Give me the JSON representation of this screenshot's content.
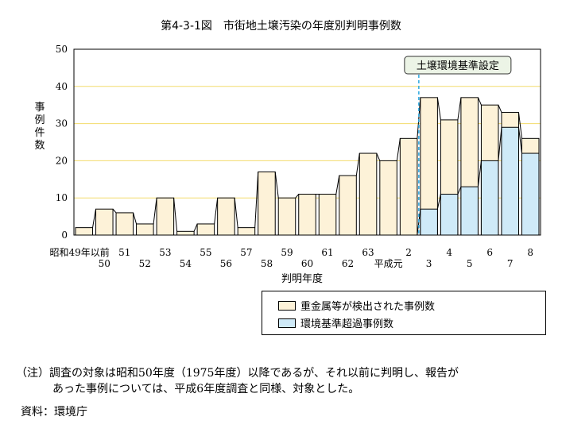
{
  "chart_data": {
    "type": "bar",
    "title": "第4-3-1図　市街地土壌汚染の年度別判明事例数",
    "ylabel": "事例件数",
    "xlabel": "判明年度",
    "ylim": [
      0,
      50
    ],
    "yticks": [
      0,
      10,
      20,
      30,
      40,
      50
    ],
    "gridlines": true,
    "categories": [
      "昭和49年以前",
      "50",
      "51",
      "52",
      "53",
      "54",
      "55",
      "56",
      "57",
      "58",
      "59",
      "60",
      "61",
      "62",
      "63",
      "平成元",
      "2",
      "3",
      "4",
      "5",
      "6",
      "7",
      "8"
    ],
    "tick_labels_row1": [
      "昭和49年以前",
      "51",
      "53",
      "55",
      "57",
      "59",
      "61",
      "63",
      "2",
      "4",
      "6",
      "8"
    ],
    "tick_labels_row2": [
      "50",
      "52",
      "54",
      "56",
      "58",
      "60",
      "62",
      "平成元",
      "3",
      "5",
      "7"
    ],
    "series": [
      {
        "name": "重金属等が検出された事例数",
        "color": "#fdf2d8",
        "values": [
          2,
          7,
          6,
          3,
          10,
          1,
          3,
          10,
          2,
          17,
          10,
          11,
          11,
          16,
          22,
          20,
          26,
          37,
          31,
          37,
          35,
          33,
          26
        ]
      },
      {
        "name": "環境基準超過事例数",
        "color": "#cfeaf8",
        "values": [
          null,
          null,
          null,
          null,
          null,
          null,
          null,
          null,
          null,
          null,
          null,
          null,
          null,
          null,
          null,
          null,
          0,
          7,
          11,
          13,
          20,
          29,
          22
        ]
      }
    ],
    "annotation": {
      "label": "土壌環境基準設定",
      "between": [
        "2",
        "3"
      ]
    },
    "legend_position": "bottom-right"
  },
  "note": {
    "line1": "（注）調査の対象は昭和50年度（1975年度）以降であるが、それ以前に判明し、報告が",
    "line2": "あった事例については、平成6年度調査と同様、対象とした。"
  },
  "source": "資料：環境庁"
}
